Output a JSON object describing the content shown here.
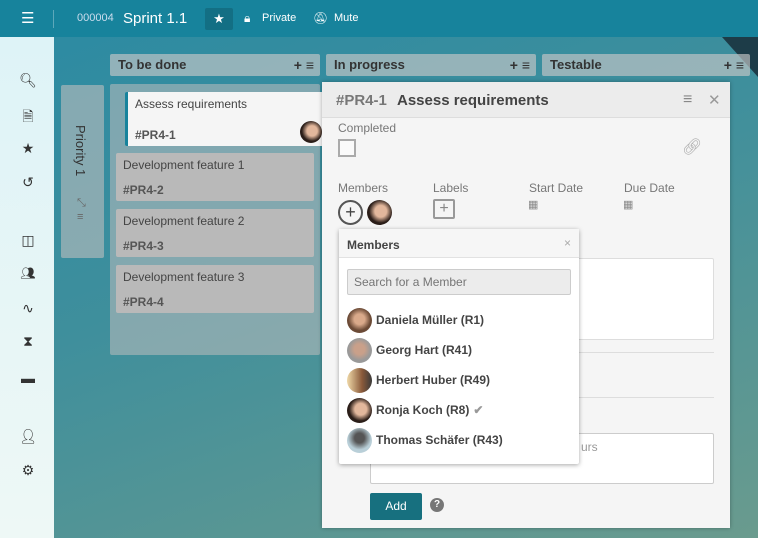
{
  "topbar": {
    "menu_icon": "hamburger-icon",
    "board_id": "000004",
    "board_title": "Sprint 1.1",
    "star_icon": "star-icon",
    "private_label": "Private",
    "mute_label": "Mute"
  },
  "sidebar": {
    "icons": [
      "search-icon",
      "add-document-icon",
      "star-icon",
      "history-icon",
      "board-icon",
      "users-icon",
      "activity-icon",
      "hourglass-icon",
      "archive-icon",
      "user-icon",
      "gear-icon"
    ]
  },
  "swimlane": {
    "title": "Priority 1"
  },
  "columns": [
    {
      "title": "To be done"
    },
    {
      "title": "In progress"
    },
    {
      "title": "Testable"
    }
  ],
  "cards": [
    {
      "title": "Assess requirements",
      "id": "#PR4-1"
    },
    {
      "title": "Development feature 1",
      "id": "#PR4-2"
    },
    {
      "title": "Development feature 2",
      "id": "#PR4-3"
    },
    {
      "title": "Development feature 3",
      "id": "#PR4-4"
    }
  ],
  "detail": {
    "id": "#PR4-1",
    "title": "Assess requirements",
    "completed_label": "Completed",
    "completed": false,
    "members_label": "Members",
    "labels_label": "Labels",
    "start_date_label": "Start Date",
    "due_date_label": "Due Date",
    "textarea_fragment": "urs",
    "add_label": "Add"
  },
  "members_popup": {
    "title": "Members",
    "close": "×",
    "search_placeholder": "Search for a Member",
    "members": [
      {
        "name": "Daniela Müller (R1)",
        "selected": false
      },
      {
        "name": "Georg Hart (R41)",
        "selected": false
      },
      {
        "name": "Herbert Huber (R49)",
        "selected": false
      },
      {
        "name": "Ronja Koch (R8)",
        "selected": true
      },
      {
        "name": "Thomas Schäfer (R43)",
        "selected": false
      }
    ]
  },
  "colors": {
    "topbar": "#17839c",
    "accent": "#17707f"
  }
}
